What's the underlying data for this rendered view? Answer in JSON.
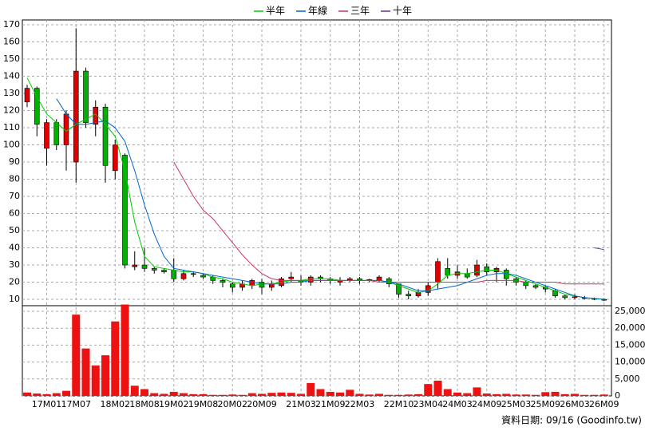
{
  "chart_data": [
    {
      "type": "candlestick",
      "up_color": "#e00000",
      "down_color": "#00b000",
      "grid": true,
      "categories": [
        null,
        null,
        "17M01",
        null,
        null,
        "17M07",
        null,
        null,
        null,
        "18M02",
        null,
        null,
        "18M08",
        null,
        null,
        "19M02",
        null,
        null,
        "19M08",
        null,
        null,
        "20M02",
        null,
        null,
        "20M09",
        null,
        null,
        null,
        "21M03",
        null,
        null,
        "21M09",
        null,
        null,
        "22M03",
        null,
        null,
        null,
        "22M10",
        null,
        null,
        "23M04",
        null,
        null,
        "24M03",
        null,
        null,
        "24M09",
        null,
        null,
        "25M03",
        null,
        null,
        "25M09",
        null,
        null,
        "26M03",
        null,
        null,
        "26M09"
      ],
      "open": [
        125,
        133,
        98,
        113,
        100,
        90,
        143,
        112,
        122,
        85,
        94,
        29,
        30,
        28,
        27,
        27,
        22,
        25,
        24,
        23,
        21,
        19,
        17,
        18,
        20,
        17,
        18,
        22,
        21,
        20,
        23,
        22,
        20,
        21,
        22,
        21,
        21,
        22,
        19,
        13,
        12,
        14,
        20,
        28,
        24,
        25,
        24,
        29,
        26,
        27,
        22,
        20,
        18,
        17,
        15,
        12,
        11,
        11,
        10.5,
        10
      ],
      "high": [
        135,
        134,
        115,
        115,
        120,
        168,
        145,
        126,
        124,
        103,
        95,
        38,
        40,
        29,
        28,
        34,
        27,
        26,
        25,
        24,
        22,
        20,
        21,
        22,
        22,
        21,
        23,
        26,
        24,
        24,
        24,
        23,
        23,
        23,
        23,
        22,
        24,
        23,
        19,
        15,
        16,
        20,
        34,
        34,
        30,
        28,
        33,
        31,
        29,
        28,
        23,
        21,
        19,
        18,
        16,
        12.5,
        13,
        12,
        11,
        10.5
      ],
      "low": [
        122,
        105,
        88,
        97,
        85,
        78,
        110,
        105,
        78,
        80,
        28,
        27,
        26,
        25,
        25,
        20,
        21,
        23,
        22,
        19,
        17,
        14,
        15,
        16,
        13,
        15,
        17,
        20,
        18,
        18,
        20,
        19,
        18,
        20,
        19,
        20,
        20,
        17,
        11,
        10,
        11,
        12,
        16,
        22,
        22,
        22,
        23,
        24,
        20,
        18,
        18,
        16,
        16,
        14,
        11,
        10,
        10,
        10,
        9.5,
        9
      ],
      "close": [
        133,
        112,
        113,
        100,
        118,
        143,
        113,
        122,
        88,
        100,
        30,
        30,
        28,
        27,
        26,
        22,
        25,
        25,
        23,
        21,
        20,
        17,
        19,
        21,
        17,
        19,
        22,
        23,
        20,
        23,
        22,
        21,
        21,
        22,
        21,
        21.5,
        23,
        19,
        13,
        12,
        14,
        18,
        32,
        24,
        26,
        23,
        30,
        26,
        28,
        22,
        20,
        18,
        17,
        16,
        12,
        11,
        11.5,
        10.5,
        10,
        9.5
      ],
      "series": [
        {
          "name": "半年",
          "color": "#00cc00",
          "values": [
            139,
            128,
            118,
            113,
            108,
            112,
            115,
            118,
            112,
            105,
            85,
            55,
            35,
            29,
            28,
            27,
            26,
            26,
            25,
            23,
            22,
            20,
            19,
            18,
            19,
            19,
            20,
            21,
            21,
            22,
            22,
            22,
            21,
            21,
            21,
            21,
            21,
            20,
            18,
            16,
            14,
            15,
            19,
            24,
            25,
            25,
            26,
            27,
            27,
            25,
            23,
            21,
            19,
            17,
            15,
            13,
            12,
            11,
            10.5,
            10
          ]
        },
        {
          "name": "年線",
          "color": "#0066cc",
          "values": [
            null,
            null,
            null,
            127,
            118,
            112,
            112,
            113,
            114,
            110,
            102,
            85,
            65,
            48,
            35,
            28,
            27,
            26,
            25,
            24,
            23,
            22,
            21,
            20,
            19,
            19,
            19,
            20,
            20,
            21,
            21,
            21,
            21,
            21,
            21,
            21,
            21,
            20,
            19,
            17,
            15,
            15,
            16,
            17,
            18,
            20,
            22,
            24,
            25,
            25,
            24,
            22,
            20,
            18,
            16,
            14,
            12,
            11,
            10.5,
            10
          ]
        },
        {
          "name": "三年",
          "color": "#cc3366",
          "values": [
            null,
            null,
            null,
            null,
            null,
            null,
            null,
            null,
            null,
            null,
            null,
            null,
            null,
            null,
            null,
            90,
            80,
            70,
            62,
            57,
            50,
            43,
            36,
            30,
            25,
            22,
            21,
            21,
            21,
            21,
            21,
            21,
            21,
            21,
            21,
            21,
            20,
            20,
            20,
            20,
            20,
            20,
            20,
            20,
            20,
            20,
            20,
            21,
            21,
            21,
            21,
            20,
            20,
            20,
            20,
            19,
            19,
            19,
            19,
            19
          ]
        },
        {
          "name": "十年",
          "color": "#663399",
          "values": [
            null,
            null,
            null,
            null,
            null,
            null,
            null,
            null,
            null,
            null,
            null,
            null,
            null,
            null,
            null,
            null,
            null,
            null,
            null,
            null,
            null,
            null,
            null,
            null,
            null,
            null,
            null,
            null,
            null,
            null,
            null,
            null,
            null,
            null,
            null,
            null,
            null,
            null,
            null,
            null,
            null,
            null,
            null,
            null,
            null,
            null,
            null,
            null,
            null,
            null,
            null,
            null,
            null,
            null,
            null,
            null,
            null,
            null,
            40,
            39
          ]
        }
      ],
      "ylim": [
        6.3,
        172.8
      ],
      "yticks": [
        10,
        20,
        30,
        40,
        50,
        60,
        70,
        80,
        90,
        100,
        110,
        120,
        130,
        140,
        150,
        160,
        170
      ]
    },
    {
      "type": "bar",
      "color": "#ee1111",
      "grid": true,
      "values": [
        1000,
        700,
        500,
        800,
        1500,
        24000,
        14000,
        9000,
        12000,
        22000,
        27000,
        3000,
        2000,
        800,
        600,
        1200,
        800,
        500,
        500,
        300,
        300,
        400,
        300,
        800,
        600,
        900,
        1000,
        900,
        600,
        3800,
        2000,
        1200,
        1000,
        1800,
        600,
        400,
        600,
        300,
        300,
        400,
        500,
        3500,
        4500,
        2000,
        1000,
        800,
        2500,
        700,
        500,
        600,
        400,
        400,
        300,
        1100,
        1200,
        500,
        600,
        300,
        300,
        400
      ],
      "ylim": [
        0,
        26650
      ],
      "yticks": [
        0,
        {
          "value": 5000,
          "label": "5,000"
        },
        {
          "value": 10000,
          "label": "10,000"
        },
        {
          "value": 15000,
          "label": "15,000"
        },
        {
          "value": 20000,
          "label": "20,000"
        },
        {
          "value": 25000,
          "label": "25,000"
        }
      ]
    }
  ],
  "footer": "資料日期: 09/16 (Goodinfo.tw)"
}
